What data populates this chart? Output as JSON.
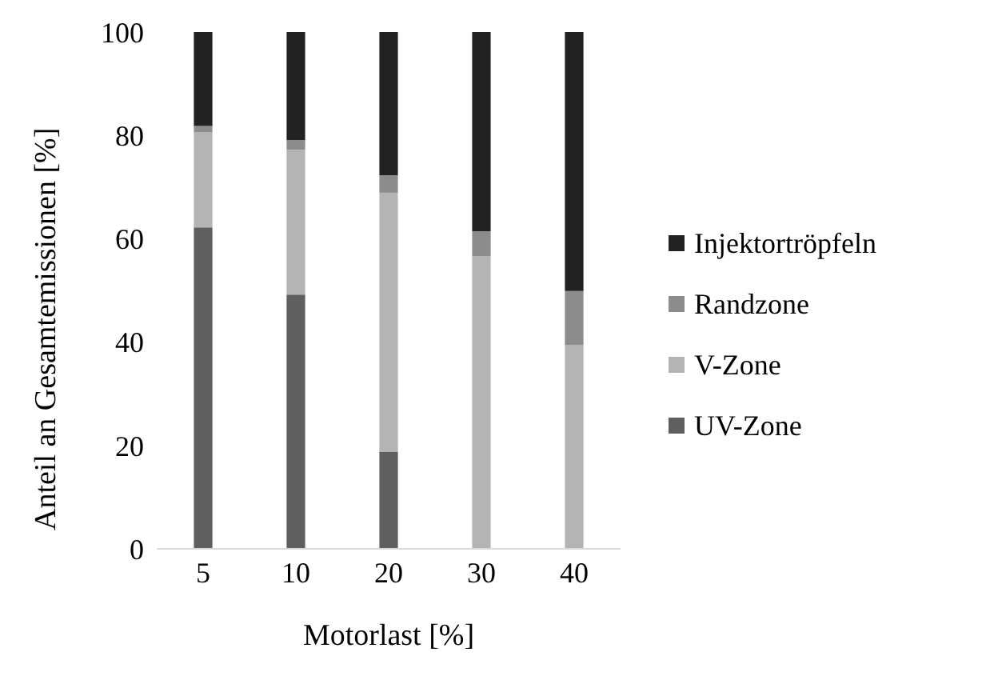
{
  "chart_data": {
    "type": "bar",
    "stacked": true,
    "xlabel": "Motorlast [%]",
    "ylabel": "Anteil an Gesamtemissionen [%]",
    "categories": [
      "5",
      "10",
      "20",
      "30",
      "40"
    ],
    "series": [
      {
        "name": "UV-Zone",
        "color": "#5f5f5f",
        "values": [
          62.2,
          49.2,
          18.8,
          0,
          0
        ]
      },
      {
        "name": "V-Zone",
        "color": "#b4b4b4",
        "values": [
          18.4,
          28.0,
          50.1,
          56.6,
          39.4
        ]
      },
      {
        "name": "Randzone",
        "color": "#8c8c8c",
        "values": [
          1.2,
          1.9,
          3.4,
          4.8,
          10.5
        ]
      },
      {
        "name": "Injektortröpfeln",
        "color": "#222222",
        "values": [
          18.2,
          20.9,
          27.7,
          38.6,
          50.1
        ]
      }
    ],
    "ylim": [
      0,
      100
    ],
    "yticks": [
      0,
      20,
      40,
      60,
      80,
      100
    ],
    "grid": false,
    "legend": "right"
  }
}
